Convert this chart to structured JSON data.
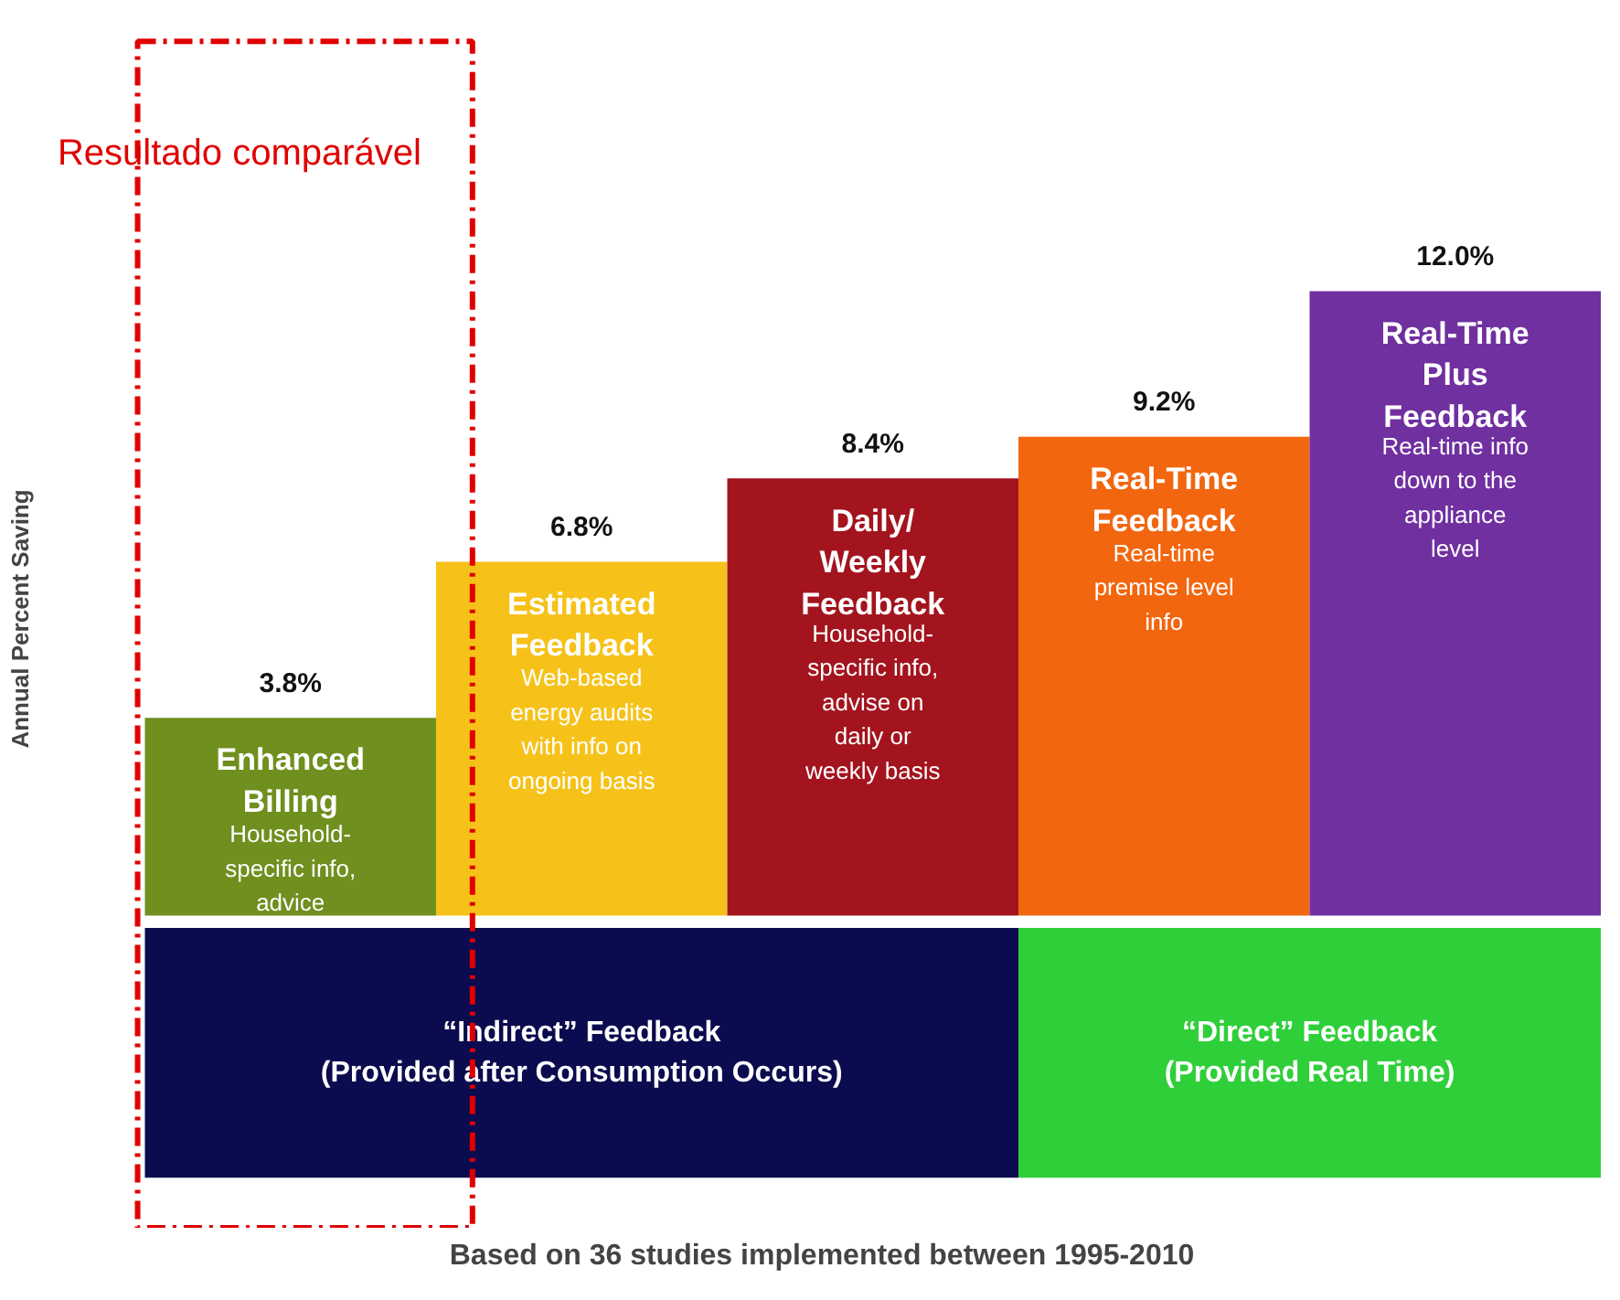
{
  "chart_data": {
    "type": "bar",
    "ylabel": "Annual Percent Saving",
    "categories": [
      "Enhanced\nBilling",
      "Estimated\nFeedback",
      "Daily/\nWeekly\nFeedback",
      "Real-Time\nFeedback",
      "Real-Time\nPlus\nFeedback"
    ],
    "values": [
      3.8,
      6.8,
      8.4,
      9.2,
      12.0
    ],
    "colors": [
      "#6f8f1f",
      "#f6c21a",
      "#a3141e",
      "#f2660f",
      "#7030a0"
    ],
    "data_labels": true,
    "value_labels": [
      "3.8%",
      "6.8%",
      "8.4%",
      "9.2%",
      "12.0%"
    ],
    "annotations": [
      "Resultado comparável",
      "Based on 36 studies implemented between 1995-2010",
      "Household-\nspecific info,\nadvice",
      "Web-based\nenergy audits\nwith info on\nongoing basis",
      "Household-\nspecific info,\nadvise on\ndaily or\nweekly basis",
      "Real-time\npremise level\ninfo",
      "Real-time info\ndown to the\nappliance\nlevel",
      "“Indirect” Feedback\n(Provided after Consumption Occurs)",
      "“Direct” Feedback\n(Provided Real Time)"
    ]
  }
}
